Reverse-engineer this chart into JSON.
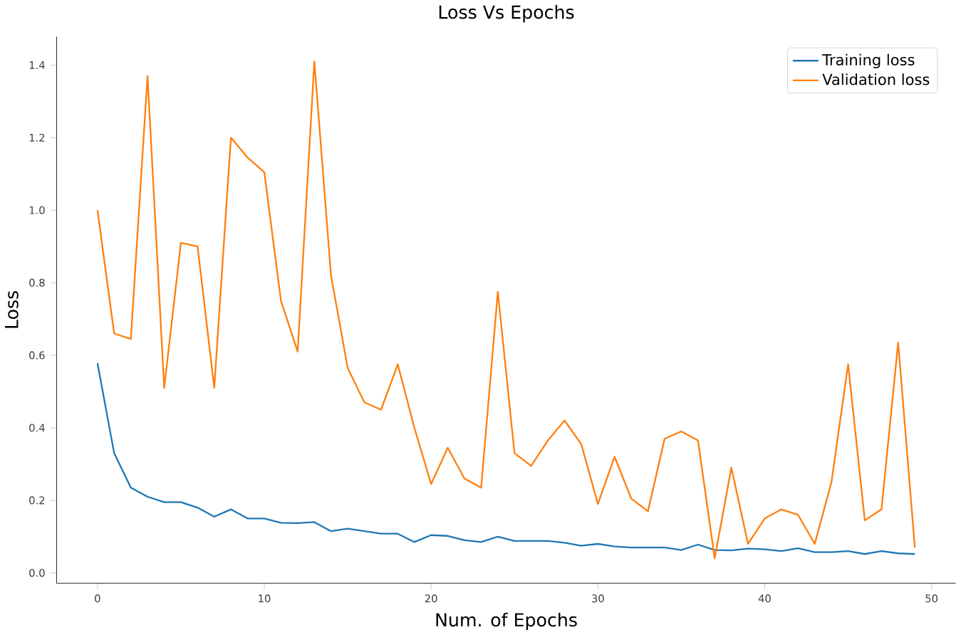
{
  "chart_data": {
    "type": "line",
    "title": "Loss Vs Epochs",
    "xlabel": "Num. of Epochs",
    "ylabel": "Loss",
    "x": [
      0,
      1,
      2,
      3,
      4,
      5,
      6,
      7,
      8,
      9,
      10,
      11,
      12,
      13,
      14,
      15,
      16,
      17,
      18,
      19,
      20,
      21,
      22,
      23,
      24,
      25,
      26,
      27,
      28,
      29,
      30,
      31,
      32,
      33,
      34,
      35,
      36,
      37,
      38,
      39,
      40,
      41,
      42,
      43,
      44,
      45,
      46,
      47,
      48,
      49
    ],
    "series": [
      {
        "name": "Training loss",
        "color": "#1f77b4",
        "values": [
          0.578,
          0.33,
          0.235,
          0.21,
          0.195,
          0.195,
          0.18,
          0.155,
          0.175,
          0.15,
          0.15,
          0.138,
          0.137,
          0.14,
          0.115,
          0.122,
          0.115,
          0.108,
          0.108,
          0.085,
          0.104,
          0.102,
          0.09,
          0.085,
          0.1,
          0.088,
          0.088,
          0.088,
          0.083,
          0.075,
          0.08,
          0.073,
          0.07,
          0.07,
          0.07,
          0.063,
          0.078,
          0.063,
          0.062,
          0.067,
          0.065,
          0.06,
          0.068,
          0.057,
          0.057,
          0.06,
          0.052,
          0.06,
          0.054,
          0.052
        ]
      },
      {
        "name": "Validation loss",
        "color": "#ff7f0e",
        "values": [
          1.0,
          0.66,
          0.645,
          1.37,
          0.51,
          0.91,
          0.9,
          0.51,
          1.2,
          1.145,
          1.105,
          0.75,
          0.61,
          1.41,
          0.82,
          0.565,
          0.47,
          0.45,
          0.575,
          0.4,
          0.245,
          0.345,
          0.26,
          0.235,
          0.775,
          0.33,
          0.295,
          0.365,
          0.42,
          0.355,
          0.19,
          0.32,
          0.205,
          0.17,
          0.37,
          0.39,
          0.365,
          0.04,
          0.29,
          0.08,
          0.15,
          0.175,
          0.16,
          0.08,
          0.25,
          0.575,
          0.145,
          0.175,
          0.635,
          0.07
        ]
      }
    ],
    "xlim": [
      -2.45,
      51.45
    ],
    "ylim": [
      -0.0285,
      1.4785
    ],
    "xticks": [
      0,
      10,
      20,
      30,
      40,
      50
    ],
    "yticks": [
      {
        "value": 0,
        "label": "0.0"
      },
      {
        "value": 0.2,
        "label": "0.2"
      },
      {
        "value": 0.4,
        "label": "0.4"
      },
      {
        "value": 0.6,
        "label": "0.6"
      },
      {
        "value": 0.8,
        "label": "0.8"
      },
      {
        "value": 1.0,
        "label": "1.0"
      },
      {
        "value": 1.2,
        "label": "1.2"
      },
      {
        "value": 1.4,
        "label": "1.4"
      }
    ],
    "legend": "top right",
    "marker": "none",
    "line_style": "solid"
  }
}
